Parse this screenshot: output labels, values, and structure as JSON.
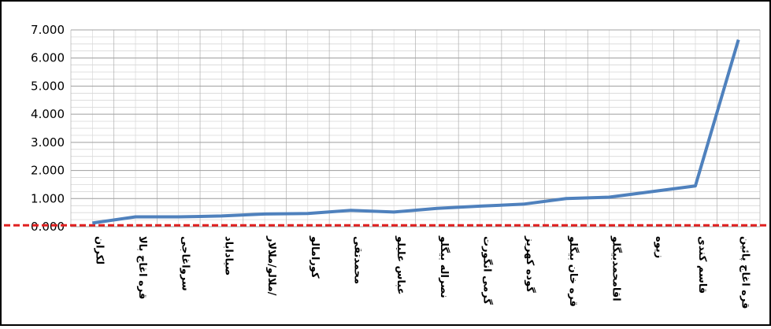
{
  "chart_data": {
    "type": "line",
    "categories": [
      "لکران",
      "قره اغاج بالا",
      "سرواغاجی",
      "صیاداباد",
      "ملالو/ملالار/",
      "کورامالو",
      "محمدتقی",
      "عباس علیلو",
      "نصراله بیگلو",
      "گرمی انگورت",
      "گوده کهریز",
      "قره خان بیگلو",
      "اقامحمدبیگلو",
      "زیوه",
      "قاسم کندی",
      "قره اغاج پائین"
    ],
    "series": [
      {
        "color": "#4f81bd",
        "values": [
          0.13,
          0.35,
          0.35,
          0.38,
          0.45,
          0.47,
          0.58,
          0.52,
          0.65,
          0.73,
          0.8,
          1.0,
          1.05,
          1.25,
          1.45,
          6.65
        ]
      }
    ],
    "ylim": [
      0,
      7
    ],
    "yticks": [
      {
        "value": 0,
        "label": "0.000"
      },
      {
        "value": 1,
        "label": "1.000"
      },
      {
        "value": 2,
        "label": "2.000"
      },
      {
        "value": 3,
        "label": "3.000"
      },
      {
        "value": 4,
        "label": "4.000"
      },
      {
        "value": 5,
        "label": "5.000"
      },
      {
        "value": 6,
        "label": "6.000"
      },
      {
        "value": 7,
        "label": "7.000"
      }
    ],
    "grid": true,
    "reference_line": {
      "value": 0.05,
      "color": "#e02020"
    }
  }
}
